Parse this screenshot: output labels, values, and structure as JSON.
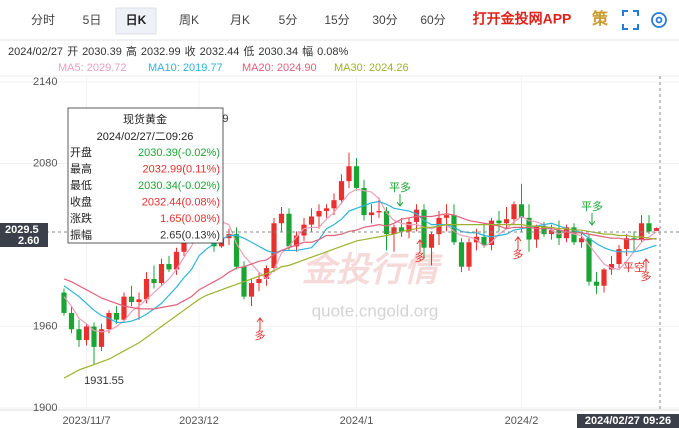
{
  "tabs": [
    "分时",
    "5日",
    "日K",
    "周K",
    "月K",
    "5分",
    "15分",
    "30分",
    "60分"
  ],
  "active_tab": 2,
  "app_button": "打开金投网APP",
  "strategy_icon": "策",
  "quote_bar": {
    "date": "2024/02/27",
    "items": [
      {
        "label": "开",
        "value": "2030.39"
      },
      {
        "label": "高",
        "value": "2032.99"
      },
      {
        "label": "收",
        "value": "2032.44"
      },
      {
        "label": "低",
        "value": "2030.34"
      },
      {
        "label": "幅",
        "value": "0.08%"
      }
    ]
  },
  "tooltip": {
    "title": "现货黄金",
    "time": "2024/02/27/二09:26",
    "rows": [
      {
        "label": "开盘",
        "value": "2030.39(-0.02%)",
        "color": "#1aa434"
      },
      {
        "label": "最高",
        "value": "2032.99(0.11%)",
        "color": "#e8302f"
      },
      {
        "label": "最低",
        "value": "2030.34(-0.02%)",
        "color": "#1aa434"
      },
      {
        "label": "收盘",
        "value": "2032.44(0.08%)",
        "color": "#e8302f"
      },
      {
        "label": "涨跌",
        "value": "1.65(0.08%)",
        "color": "#e8302f"
      },
      {
        "label": "振幅",
        "value": "2.65(0.13%)",
        "color": "#333333"
      }
    ]
  },
  "chart_data": {
    "type": "candlestick",
    "up_color": "#e8302f",
    "down_color": "#1aa434",
    "grid": true,
    "categories": [
      null,
      null,
      null,
      "2023/11/7",
      null,
      null,
      null,
      null,
      null,
      null,
      null,
      null,
      null,
      null,
      null,
      null,
      null,
      null,
      "2023/12",
      null,
      null,
      null,
      null,
      null,
      null,
      null,
      null,
      null,
      null,
      null,
      null,
      null,
      null,
      null,
      null,
      null,
      null,
      null,
      null,
      "2024/1",
      null,
      null,
      null,
      null,
      null,
      null,
      null,
      null,
      null,
      null,
      null,
      null,
      null,
      null,
      null,
      null,
      null,
      null,
      null,
      null,
      null,
      "2024/2",
      null,
      null,
      null,
      null,
      null,
      null,
      null,
      null,
      null,
      null,
      null,
      null,
      null,
      null,
      null,
      null,
      null,
      null
    ],
    "open": [
      1985,
      1970,
      1958,
      1950,
      1960,
      1945,
      1958,
      1970,
      1965,
      1982,
      1978,
      1980,
      1995,
      1992,
      2006,
      2002,
      2015,
      2032,
      2036,
      2072,
      2029,
      2019,
      2025,
      2028,
      2004,
      1982,
      1992,
      1995,
      2003,
      2036,
      2043,
      2019,
      2027,
      2035,
      2041,
      2045,
      2047,
      2053,
      2067,
      2078,
      2062,
      2042,
      2044,
      2045,
      2028,
      2033,
      2030,
      2037,
      2046,
      2018,
      2028,
      2040,
      2042,
      2022,
      2004,
      2022,
      2026,
      2020,
      2038,
      2036,
      2039,
      2050,
      2040,
      2024,
      2034,
      2028,
      2031,
      2025,
      2033,
      2022,
      2025,
      1993,
      1990,
      2002,
      2006,
      2017,
      2025,
      2024,
      2036,
      2030.39
    ],
    "high": [
      1988,
      1975,
      1965,
      1962,
      1963,
      1962,
      1972,
      1975,
      1985,
      1990,
      1985,
      2000,
      2005,
      2010,
      2012,
      2018,
      2035,
      2045,
      2075,
      2111.39,
      2040,
      2035,
      2032,
      2033,
      2008,
      1995,
      2000,
      2005,
      2040,
      2048,
      2047,
      2030,
      2040,
      2047,
      2050,
      2050,
      2058,
      2072,
      2088,
      2084,
      2068,
      2050,
      2055,
      2048,
      2035,
      2040,
      2040,
      2050,
      2050,
      2030,
      2045,
      2050,
      2050,
      2025,
      2025,
      2032,
      2035,
      2040,
      2045,
      2048,
      2052,
      2065,
      2050,
      2035,
      2037,
      2035,
      2038,
      2035,
      2036,
      2030,
      2028,
      2000,
      2003,
      2012,
      2020,
      2028,
      2030,
      2042,
      2042,
      2032.99
    ],
    "low": [
      1968,
      1955,
      1945,
      1946,
      1931.55,
      1942,
      1955,
      1962,
      1963,
      1975,
      1965,
      1977,
      1988,
      1990,
      2000,
      1998,
      2012,
      2028,
      2034,
      2025,
      2015,
      2018,
      2020,
      2002,
      1980,
      1975,
      1986,
      1990,
      2000,
      2030,
      2016,
      2015,
      2023,
      2030,
      2032,
      2040,
      2042,
      2050,
      2062,
      2060,
      2038,
      2036,
      2040,
      2016,
      2015,
      2026,
      2025,
      2030,
      2010,
      2005,
      2020,
      2030,
      2020,
      2000,
      2001,
      2016,
      2018,
      2016,
      2030,
      2032,
      2035,
      2030,
      2015,
      2018,
      2026,
      2024,
      2020,
      2022,
      2020,
      2018,
      1990,
      1984,
      1985,
      1998,
      2003,
      2012,
      2015,
      2022,
      2028,
      2030.34
    ],
    "close": [
      1970,
      1958,
      1950,
      1960,
      1945,
      1958,
      1970,
      1965,
      1982,
      1978,
      1980,
      1995,
      1992,
      2006,
      2002,
      2015,
      2032,
      2040,
      2072,
      2029,
      2019,
      2025,
      2028,
      2004,
      1982,
      1992,
      1995,
      2003,
      2036,
      2043,
      2019,
      2027,
      2035,
      2041,
      2045,
      2047,
      2053,
      2067,
      2078,
      2062,
      2042,
      2044,
      2045,
      2028,
      2033,
      2030,
      2037,
      2046,
      2018,
      2028,
      2040,
      2042,
      2022,
      2004,
      2022,
      2026,
      2020,
      2038,
      2036,
      2039,
      2050,
      2040,
      2024,
      2034,
      2028,
      2031,
      2025,
      2033,
      2022,
      2025,
      1993,
      1990,
      2002,
      2006,
      2017,
      2025,
      2024,
      2036,
      2030,
      2032.44
    ],
    "series": [
      {
        "name": "MA5: 2029.72",
        "color": "#eb9fbc",
        "values": [
          1982,
          1975,
          1966,
          1962,
          1957,
          1956,
          1957,
          1960,
          1964,
          1971,
          1975,
          1980,
          1985,
          1990,
          1995,
          2002,
          2011,
          2019,
          2032,
          2038,
          2042,
          2037,
          2035,
          2021,
          2012,
          2006,
          2000,
          1995,
          2002,
          2014,
          2019,
          2026,
          2032,
          2033,
          2033,
          2039,
          2044,
          2051,
          2058,
          2061,
          2060,
          2059,
          2054,
          2044,
          2038,
          2036,
          2035,
          2035,
          2033,
          2032,
          2034,
          2035,
          2030,
          2027,
          2026,
          2024,
          2019,
          2022,
          2028,
          2032,
          2037,
          2041,
          2038,
          2037,
          2035,
          2031,
          2028,
          2030,
          2028,
          2027,
          2020,
          2013,
          2006,
          2003,
          2002,
          2008,
          2015,
          2022,
          2026,
          2029.72
        ]
      },
      {
        "name": "MA10: 2019.77",
        "color": "#2bb5d8",
        "values": [
          1990,
          1986,
          1982,
          1977,
          1972,
          1968,
          1966,
          1963,
          1963,
          1964,
          1966,
          1969,
          1973,
          1977,
          1983,
          1989,
          1996,
          2002,
          2012,
          2017,
          2021,
          2024,
          2027,
          2027,
          2025,
          2022,
          2019,
          2016,
          2014,
          2016,
          2016,
          2016,
          2017,
          2018,
          2024,
          2032,
          2035,
          2039,
          2045,
          2047,
          2049,
          2051,
          2052,
          2050,
          2047,
          2046,
          2045,
          2043,
          2038,
          2035,
          2035,
          2035,
          2033,
          2030,
          2029,
          2029,
          2027,
          2026,
          2027,
          2028,
          2031,
          2032,
          2033,
          2034,
          2035,
          2036,
          2034,
          2032,
          2031,
          2029,
          2025,
          2021,
          2018,
          2016,
          2015,
          2015,
          2015,
          2016,
          2018,
          2019.77
        ]
      },
      {
        "name": "MA20: 2024.90",
        "color": "#e3607c",
        "values": [
          1995,
          1993,
          1990,
          1987,
          1984,
          1981,
          1979,
          1977,
          1975,
          1974,
          1973,
          1973,
          1973,
          1974,
          1975,
          1976,
          1979,
          1982,
          1987,
          1990,
          1993,
          1996,
          2000,
          2003,
          2004,
          2006,
          2008,
          2009,
          2013,
          2016,
          2018,
          2020,
          2022,
          2022,
          2024,
          2027,
          2027,
          2028,
          2030,
          2031,
          2033,
          2034,
          2035,
          2034,
          2036,
          2039,
          2040,
          2041,
          2041,
          2041,
          2042,
          2043,
          2042,
          2040,
          2038,
          2037,
          2036,
          2035,
          2034,
          2032,
          2033,
          2033,
          2033,
          2032,
          2032,
          2032,
          2031,
          2030,
          2029,
          2029,
          2028,
          2027,
          2026,
          2025,
          2025,
          2024,
          2024,
          2024,
          2024,
          2024.9
        ]
      },
      {
        "name": "MA30: 2024.26",
        "color": "#9cb22c",
        "values": [
          1922,
          1925,
          1928,
          1930,
          1932,
          1934,
          1936,
          1939,
          1942,
          1945,
          1948,
          1952,
          1956,
          1960,
          1964,
          1968,
          1972,
          1976,
          1980,
          1983,
          1985,
          1987,
          1989,
          1991,
          1993,
          1995,
          1997,
          1999,
          2001,
          2004,
          2005,
          2007,
          2009,
          2011,
          2013,
          2015,
          2017,
          2019,
          2021,
          2023,
          2024,
          2025,
          2026,
          2027,
          2028,
          2030,
          2031,
          2032,
          2033,
          2033,
          2034,
          2035,
          2035,
          2035,
          2035,
          2035,
          2035,
          2035,
          2035,
          2035,
          2035,
          2035,
          2034,
          2034,
          2033,
          2033,
          2032,
          2032,
          2031,
          2031,
          2030,
          2029,
          2028,
          2028,
          2027,
          2027,
          2026,
          2026,
          2025,
          2024.26
        ]
      }
    ],
    "ylim": [
      1900,
      2140
    ],
    "yticks": [
      1900,
      1960,
      2080,
      2140
    ],
    "signals": [
      "平多",
      "平多",
      "多",
      "多",
      "多",
      "平空",
      "多"
    ],
    "crosshair": {
      "price_label": "2029.5",
      "change_label": "2.60",
      "time_label": "2024/02/27 09:26"
    },
    "watermark": {
      "brand": "金投行情",
      "url": "quote.cngold.org"
    }
  }
}
